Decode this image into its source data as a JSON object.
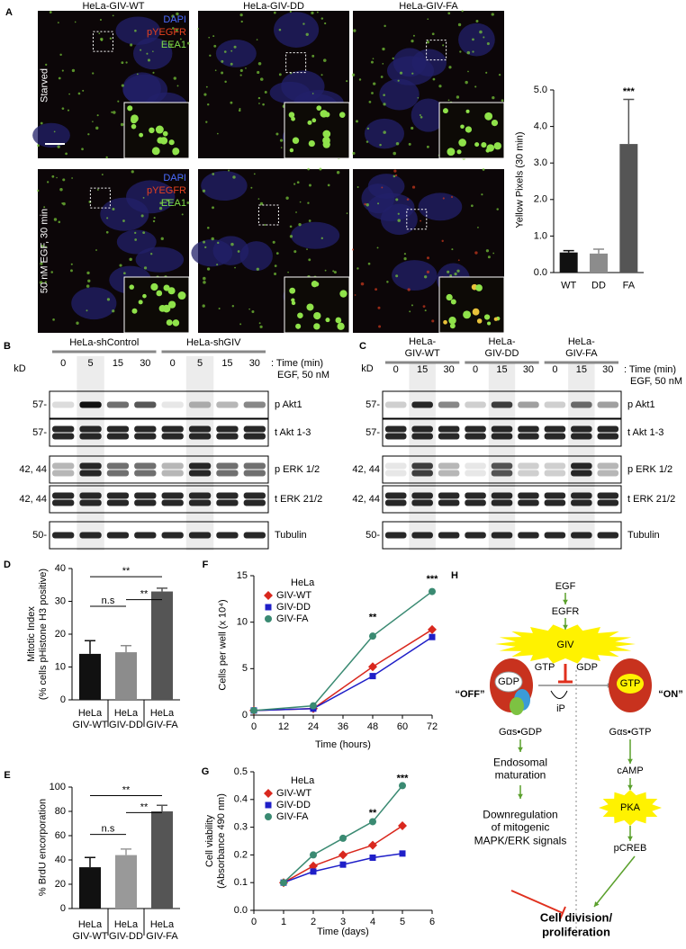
{
  "figure": {
    "panel_labels": [
      "A",
      "B",
      "C",
      "D",
      "E",
      "F",
      "G",
      "H"
    ],
    "panel_a": {
      "columns": [
        "HeLa-GIV-WT",
        "HeLa-GIV-DD",
        "HeLa-GIV-FA"
      ],
      "rows": [
        "Starved",
        "50 nM EGF, 30 min"
      ],
      "stains": [
        "DAPI",
        "pYEGFR",
        "EEA1"
      ]
    },
    "panel_b": {
      "groups": [
        "HeLa-shControl",
        "HeLa-shGIV"
      ],
      "lanes": [
        "0",
        "5",
        "15",
        "30",
        "0",
        "5",
        "15",
        "30"
      ],
      "time_label": ": Time (min)",
      "treatment": "EGF, 50 nM",
      "kd": "kD",
      "markers": [
        "57-",
        "57-",
        "42, 44",
        "42, 44",
        "50-"
      ],
      "rows": [
        "p Akt1",
        "t Akt 1-3",
        "p ERK 1/2",
        "t ERK 21/2",
        "Tubulin"
      ]
    },
    "panel_c": {
      "groups": [
        "HeLa-\nGIV-WT",
        "HeLa-\nGIV-DD",
        "HeLa-\nGIV-FA"
      ],
      "lanes": [
        "0",
        "15",
        "30",
        "0",
        "15",
        "30",
        "0",
        "15",
        "30"
      ],
      "time_label": ": Time (min)",
      "treatment": "EGF, 50 nM",
      "kd": "kD",
      "markers": [
        "57-",
        "57-",
        "42, 44",
        "42, 44",
        "50-"
      ],
      "rows": [
        "p Akt1",
        "t Akt 1-3",
        "p ERK 1/2",
        "t ERK 21/2",
        "Tubulin"
      ]
    },
    "panel_h": {
      "egf": "EGF",
      "egfr": "EGFR",
      "giv": "GIV",
      "gdp_in": "GDP",
      "gtp_in": "GTP",
      "gtp": "GTP",
      "gdp": "GDP",
      "ip": "iP",
      "off": "“OFF”",
      "on": "“ON”",
      "gs_gdp": "Gαs•GDP",
      "gs_gtp": "Gαs•GTP",
      "endosomal": "Endosomal\nmaturation",
      "downregulation": "Downregulation\nof mitogenic\nMAPK/ERK signals",
      "camp": "cAMP",
      "pka": "PKA",
      "pcreb": "pCREB",
      "outcome": "Cell division/\nproliferation"
    }
  },
  "chart_data": [
    {
      "type": "bar",
      "ylabel": "Yellow Pixels (30 min)",
      "categories": [
        "WT",
        "DD",
        "FA"
      ],
      "values": [
        0.55,
        0.52,
        3.52
      ],
      "errors": [
        0.05,
        0.12,
        1.22
      ],
      "colors": [
        "#111111",
        "#8c8c8c",
        "#555555"
      ],
      "ylim": [
        0,
        5
      ],
      "yticks": [
        {
          "value": 0,
          "label": "0.0"
        },
        {
          "value": 1,
          "label": "1.0"
        },
        {
          "value": 2,
          "label": "2.0"
        },
        {
          "value": 3,
          "label": "3.0"
        },
        {
          "value": 4,
          "label": "4.0"
        },
        {
          "value": 5,
          "label": "5.0"
        }
      ],
      "annotations": [
        "***"
      ]
    },
    {
      "type": "bar",
      "ylabel": "Mitotic Index\n(% cells pHistone H3 positive)",
      "categories": [
        "HeLa\nGIV-WT",
        "HeLa\nGIV-DD",
        "HeLa\nGIV-FA"
      ],
      "values": [
        14,
        14.5,
        33
      ],
      "errors": [
        4,
        2,
        1
      ],
      "colors": [
        "#111111",
        "#8c8c8c",
        "#555555"
      ],
      "ylim": [
        0,
        40
      ],
      "yticks": [
        0,
        10,
        20,
        30,
        40
      ],
      "annotations": [
        "**",
        "**",
        "n.s"
      ]
    },
    {
      "type": "bar",
      "ylabel": "% BrdU encorporation",
      "categories": [
        "HeLa\nGIV-WT",
        "HeLa\nGIV-DD",
        "HeLa\nGIV-FA"
      ],
      "values": [
        34,
        44,
        80
      ],
      "errors": [
        8,
        5,
        5
      ],
      "colors": [
        "#111111",
        "#999999",
        "#555555"
      ],
      "ylim": [
        0,
        100
      ],
      "yticks": [
        0,
        20,
        40,
        60,
        80,
        100
      ],
      "annotations": [
        "**",
        "**",
        "n.s"
      ]
    },
    {
      "type": "line",
      "ylabel": "Cells per well (x 10⁴)",
      "xlabel": "Time (hours)",
      "legend_title": "HeLa",
      "x": [
        0,
        24,
        48,
        72
      ],
      "series": [
        {
          "name": "GIV-WT",
          "color": "#d9281e",
          "marker": "diamond",
          "values": [
            0.5,
            0.7,
            5.2,
            9.2
          ]
        },
        {
          "name": "GIV-DD",
          "color": "#1f1fc8",
          "marker": "square",
          "values": [
            0.5,
            0.7,
            4.2,
            8.4
          ]
        },
        {
          "name": "GIV-FA",
          "color": "#3a8a72",
          "marker": "circle",
          "values": [
            0.5,
            1.0,
            8.5,
            13.3
          ]
        }
      ],
      "xlim": [
        0,
        72
      ],
      "xticks": [
        0,
        12,
        24,
        36,
        48,
        60,
        72
      ],
      "ylim": [
        0,
        15
      ],
      "yticks": [
        0,
        5,
        10,
        15
      ],
      "annotations": [
        "**",
        "***"
      ]
    },
    {
      "type": "line",
      "ylabel": "Cell viability\n(Absorbance 490 nm)",
      "xlabel": "Time (days)",
      "legend_title": "HeLa",
      "x": [
        1,
        2,
        3,
        4,
        5
      ],
      "series": [
        {
          "name": "GIV-WT",
          "color": "#d9281e",
          "marker": "diamond",
          "values": [
            0.1,
            0.16,
            0.2,
            0.235,
            0.305
          ]
        },
        {
          "name": "GIV-DD",
          "color": "#1f1fc8",
          "marker": "square",
          "values": [
            0.1,
            0.14,
            0.165,
            0.19,
            0.205
          ]
        },
        {
          "name": "GIV-FA",
          "color": "#3a8a72",
          "marker": "circle",
          "values": [
            0.1,
            0.2,
            0.26,
            0.32,
            0.45
          ]
        }
      ],
      "xlim": [
        0,
        6
      ],
      "xticks": [
        0,
        1,
        2,
        3,
        4,
        5,
        6
      ],
      "ylim": [
        0,
        0.5
      ],
      "yticks": [
        {
          "value": 0,
          "label": "0.0"
        },
        {
          "value": 0.1,
          "label": "0.1"
        },
        {
          "value": 0.2,
          "label": "0.2"
        },
        {
          "value": 0.3,
          "label": "0.3"
        },
        {
          "value": 0.4,
          "label": "0.4"
        },
        {
          "value": 0.5,
          "label": "0.5"
        }
      ],
      "annotations": [
        "**",
        "***"
      ]
    }
  ]
}
